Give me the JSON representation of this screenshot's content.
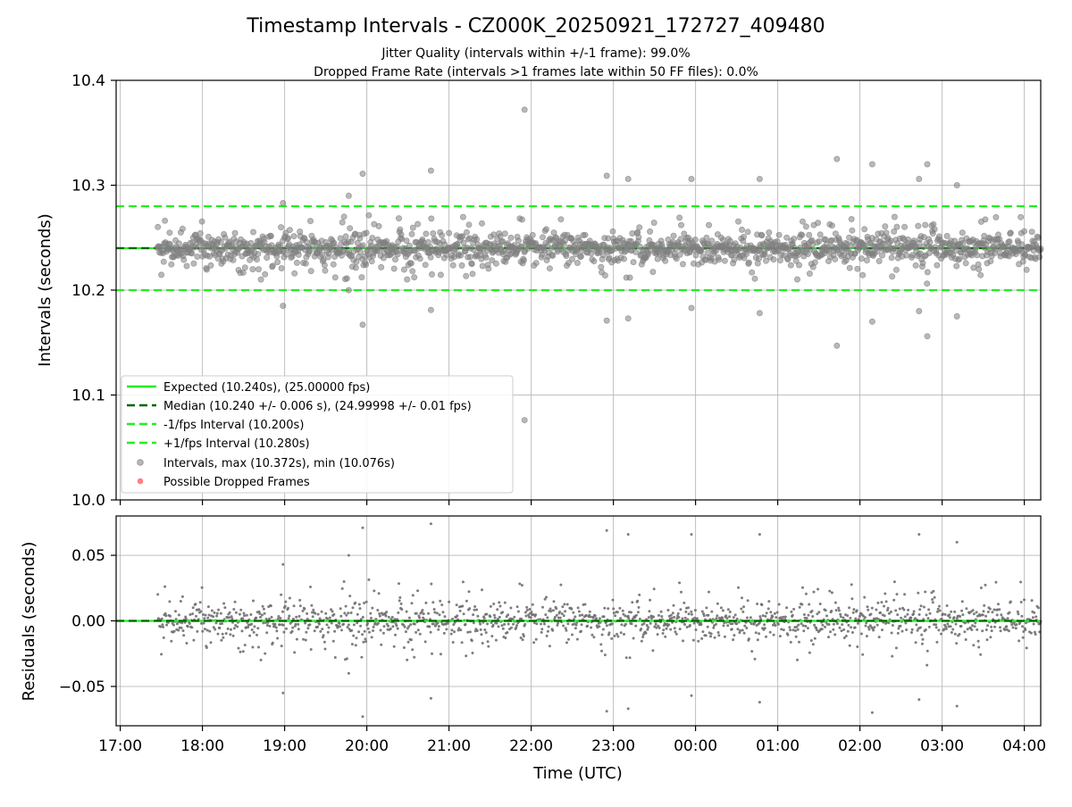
{
  "figure": {
    "title": "Timestamp Intervals - CZ000K_20250921_172727_409480",
    "subtitle_line1": "Jitter Quality (intervals within +/-1 frame): 99.0%",
    "subtitle_line2": "Dropped Frame Rate (intervals >1 frames late within 50 FF files): 0.0%",
    "xlabel": "Time (UTC)"
  },
  "chart_data": [
    {
      "type": "scatter",
      "name": "intervals",
      "ylabel": "Intervals (seconds)",
      "ylim": [
        10.0,
        10.4
      ],
      "yticks": [
        10.0,
        10.1,
        10.2,
        10.3,
        10.4
      ],
      "ytick_labels": [
        "10.0",
        "10.1",
        "10.2",
        "10.3",
        "10.4"
      ],
      "xlim_hours": [
        16.95,
        28.2
      ],
      "xticks_hours": [
        17,
        18,
        19,
        20,
        21,
        22,
        23,
        24,
        25,
        26,
        27,
        28
      ],
      "xtick_labels": [
        "17:00",
        "18:00",
        "19:00",
        "20:00",
        "21:00",
        "22:00",
        "23:00",
        "00:00",
        "01:00",
        "02:00",
        "03:00",
        "04:00"
      ],
      "grid": true,
      "legend_position": "lower-left",
      "reference_lines": [
        {
          "name": "Expected (10.240s), (25.00000 fps)",
          "y": 10.24,
          "color": "#22ee22",
          "style": "solid"
        },
        {
          "name": "Median (10.240 +/- 0.006 s), (24.99998 +/- 0.01 fps)",
          "y": 10.24,
          "color": "#006400",
          "style": "dashed"
        },
        {
          "name": "-1/fps Interval (10.200s)",
          "y": 10.2,
          "color": "#22ee22",
          "style": "dashed"
        },
        {
          "name": "+1/fps Interval (10.280s)",
          "y": 10.28,
          "color": "#22ee22",
          "style": "dashed"
        }
      ],
      "series": [
        {
          "name": "Intervals, max (10.372s), min (10.076s)",
          "color": "#808080",
          "marker": "circle"
        },
        {
          "name": "Possible Dropped Frames",
          "color": "#ff5555",
          "marker": "circle",
          "points": []
        }
      ],
      "data_range": {
        "t_start_hours": 17.45,
        "t_end_hours": 28.2,
        "center": 10.24,
        "typical_spread": 0.006
      },
      "notable_points": [
        {
          "t": 21.92,
          "y": 10.372
        },
        {
          "t": 21.92,
          "y": 10.076
        },
        {
          "t": 19.95,
          "y": 10.311
        },
        {
          "t": 19.95,
          "y": 10.167
        },
        {
          "t": 20.78,
          "y": 10.314
        },
        {
          "t": 20.78,
          "y": 10.181
        },
        {
          "t": 22.92,
          "y": 10.309
        },
        {
          "t": 22.92,
          "y": 10.171
        },
        {
          "t": 23.18,
          "y": 10.306
        },
        {
          "t": 23.18,
          "y": 10.173
        },
        {
          "t": 23.95,
          "y": 10.306
        },
        {
          "t": 23.95,
          "y": 10.183
        },
        {
          "t": 24.78,
          "y": 10.306
        },
        {
          "t": 24.78,
          "y": 10.178
        },
        {
          "t": 25.72,
          "y": 10.325
        },
        {
          "t": 25.72,
          "y": 10.147
        },
        {
          "t": 26.15,
          "y": 10.32
        },
        {
          "t": 26.15,
          "y": 10.17
        },
        {
          "t": 26.72,
          "y": 10.306
        },
        {
          "t": 26.72,
          "y": 10.18
        },
        {
          "t": 26.82,
          "y": 10.32
        },
        {
          "t": 26.82,
          "y": 10.156
        },
        {
          "t": 27.18,
          "y": 10.3
        },
        {
          "t": 27.18,
          "y": 10.175
        },
        {
          "t": 18.98,
          "y": 10.283
        },
        {
          "t": 18.98,
          "y": 10.185
        },
        {
          "t": 19.78,
          "y": 10.29
        },
        {
          "t": 19.78,
          "y": 10.2
        }
      ]
    },
    {
      "type": "scatter",
      "name": "residuals",
      "ylabel": "Residuals (seconds)",
      "ylim": [
        -0.08,
        0.08
      ],
      "yticks": [
        -0.05,
        0.0,
        0.05
      ],
      "ytick_labels": [
        "−0.05",
        "0.00",
        "0.05"
      ],
      "grid": true,
      "reference_lines": [
        {
          "y": 0.0,
          "color": "#22ee22",
          "style": "solid"
        },
        {
          "y": 0.0,
          "color": "#006400",
          "style": "dashed"
        }
      ],
      "series": [
        {
          "color": "#707070",
          "marker": "circle"
        }
      ]
    }
  ]
}
